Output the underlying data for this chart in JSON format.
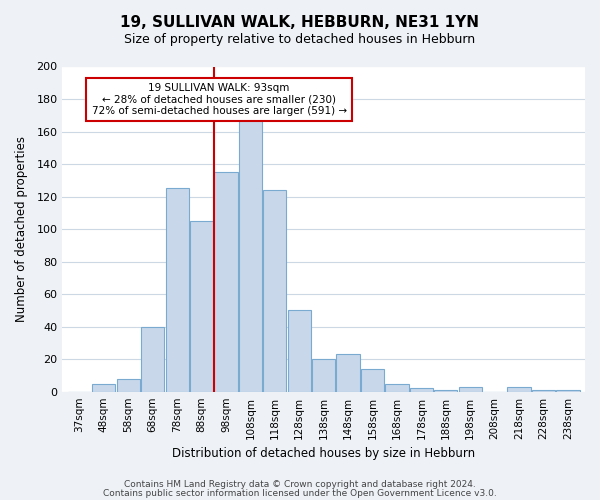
{
  "title": "19, SULLIVAN WALK, HEBBURN, NE31 1YN",
  "subtitle": "Size of property relative to detached houses in Hebburn",
  "xlabel": "Distribution of detached houses by size in Hebburn",
  "ylabel": "Number of detached properties",
  "bar_labels": [
    "37sqm",
    "48sqm",
    "58sqm",
    "68sqm",
    "78sqm",
    "88sqm",
    "98sqm",
    "108sqm",
    "118sqm",
    "128sqm",
    "138sqm",
    "148sqm",
    "158sqm",
    "168sqm",
    "178sqm",
    "188sqm",
    "198sqm",
    "208sqm",
    "218sqm",
    "228sqm",
    "238sqm"
  ],
  "bar_values": [
    0,
    5,
    8,
    40,
    125,
    105,
    135,
    167,
    124,
    50,
    20,
    23,
    14,
    5,
    2,
    1,
    3,
    0,
    3,
    1,
    1
  ],
  "bar_color": "#c8d8ea",
  "bar_edge_color": "#7aaacf",
  "vline_x": 5.5,
  "vline_color": "#cc0000",
  "annotation_box_text": "19 SULLIVAN WALK: 93sqm\n← 28% of detached houses are smaller (230)\n72% of semi-detached houses are larger (591) →",
  "annotation_box_edgecolor": "#cc0000",
  "annotation_box_facecolor": "#ffffff",
  "ylim": [
    0,
    200
  ],
  "yticks": [
    0,
    20,
    40,
    60,
    80,
    100,
    120,
    140,
    160,
    180,
    200
  ],
  "footer1": "Contains HM Land Registry data © Crown copyright and database right 2024.",
  "footer2": "Contains public sector information licensed under the Open Government Licence v3.0.",
  "background_color": "#eef2f7",
  "plot_background_color": "#ffffff",
  "grid_color": "#ccd8e4"
}
